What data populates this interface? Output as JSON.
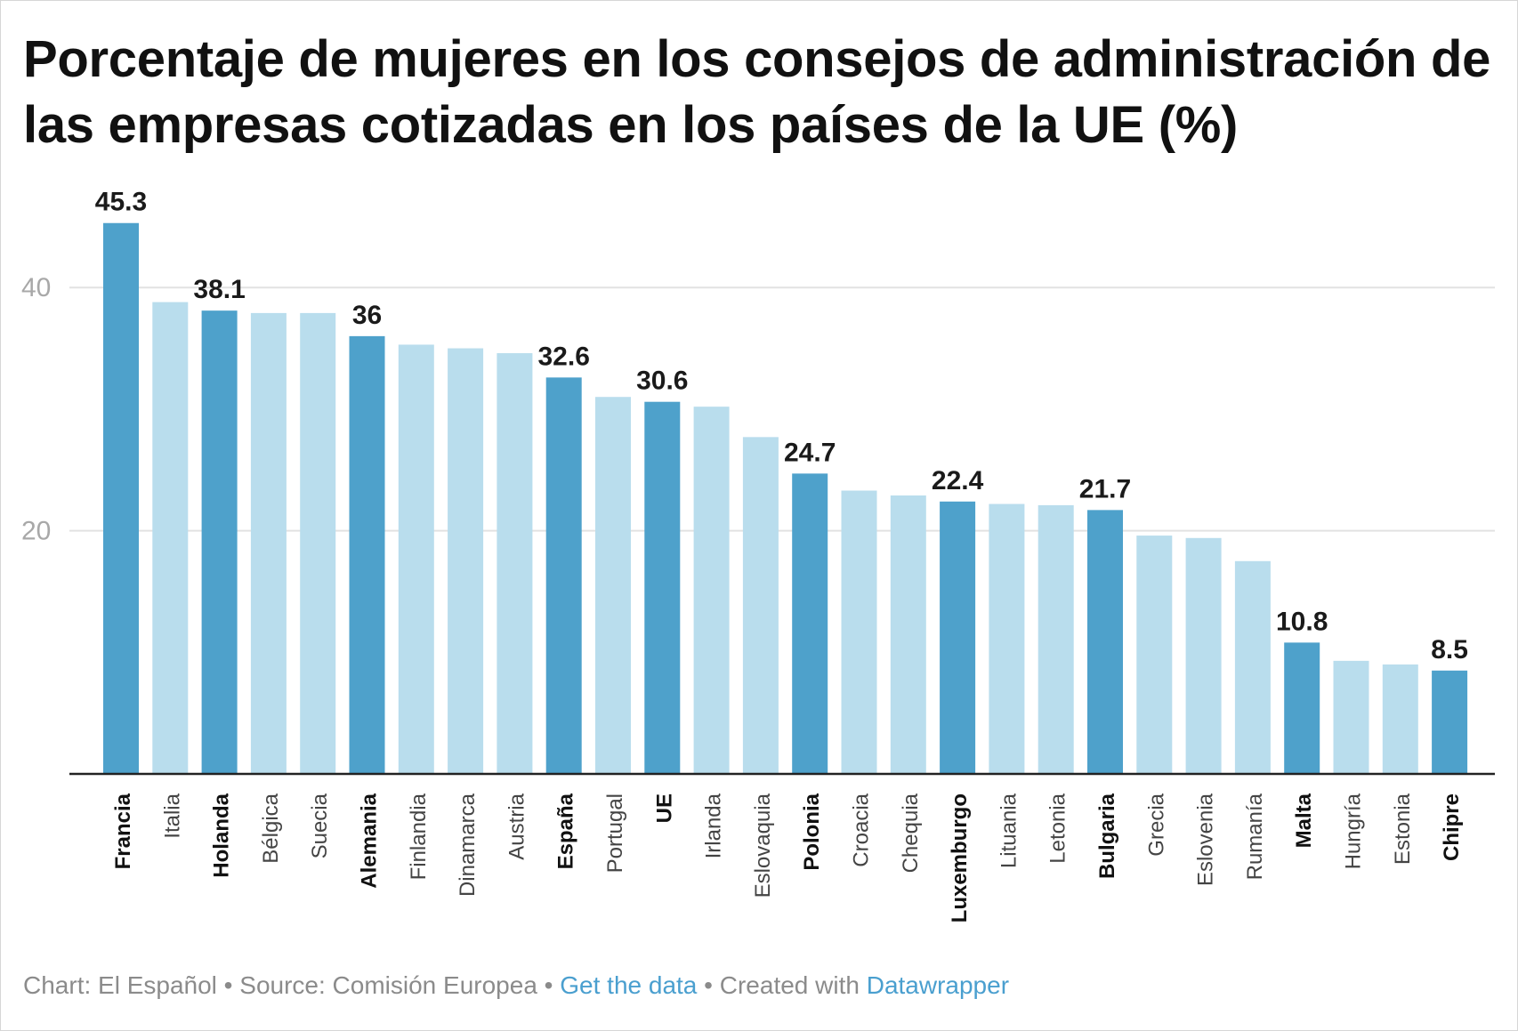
{
  "title": "Porcentaje de mujeres en los consejos de administración de las empresas cotizadas en los países de la UE (%)",
  "footer": {
    "chart_label": "Chart: El Español",
    "separator": " • ",
    "source_label": "Source: Comisión Europea",
    "get_data_label": "Get the data",
    "created_label": "Created with",
    "datawrapper_label": "Datawrapper"
  },
  "colors": {
    "highlight": "#4ea1cb",
    "base": "#b9dded",
    "grid": "#e2e2e2",
    "axis": "#222222",
    "tick_text": "#a8a8a8",
    "link": "#4a9fcf"
  },
  "chart_data": {
    "type": "bar",
    "title": "Porcentaje de mujeres en los consejos de administración de las empresas cotizadas en los países de la UE (%)",
    "xlabel": "",
    "ylabel": "",
    "ylim": [
      0,
      47
    ],
    "yticks": [
      20,
      40
    ],
    "grid": true,
    "legend": "none",
    "categories": [
      "Francia",
      "Italia",
      "Holanda",
      "Bélgica",
      "Suecia",
      "Alemania",
      "Finlandia",
      "Dinamarca",
      "Austria",
      "España",
      "Portugal",
      "UE",
      "Irlanda",
      "Eslovaquia",
      "Polonia",
      "Croacia",
      "Chequia",
      "Luxemburgo",
      "Lituania",
      "Letonia",
      "Bulgaria",
      "Grecia",
      "Eslovenia",
      "Rumanía",
      "Malta",
      "Hungría",
      "Estonia",
      "Chipre"
    ],
    "values": [
      45.3,
      38.8,
      38.1,
      37.9,
      37.9,
      36,
      35.3,
      35.0,
      34.6,
      32.6,
      31.0,
      30.6,
      30.2,
      27.7,
      24.7,
      23.3,
      22.9,
      22.4,
      22.2,
      22.1,
      21.7,
      19.6,
      19.4,
      17.5,
      10.8,
      9.3,
      9.0,
      8.5
    ],
    "highlighted": [
      "Francia",
      "Holanda",
      "Alemania",
      "España",
      "UE",
      "Polonia",
      "Luxemburgo",
      "Bulgaria",
      "Malta",
      "Chipre"
    ],
    "data_labels": [
      {
        "category": "Francia",
        "text": "45.3"
      },
      {
        "category": "Holanda",
        "text": "38.1"
      },
      {
        "category": "Alemania",
        "text": "36"
      },
      {
        "category": "España",
        "text": "32.6"
      },
      {
        "category": "UE",
        "text": "30.6"
      },
      {
        "category": "Polonia",
        "text": "24.7"
      },
      {
        "category": "Luxemburgo",
        "text": "22.4"
      },
      {
        "category": "Bulgaria",
        "text": "21.7"
      },
      {
        "category": "Malta",
        "text": "10.8"
      },
      {
        "category": "Chipre",
        "text": "8.5"
      }
    ]
  }
}
